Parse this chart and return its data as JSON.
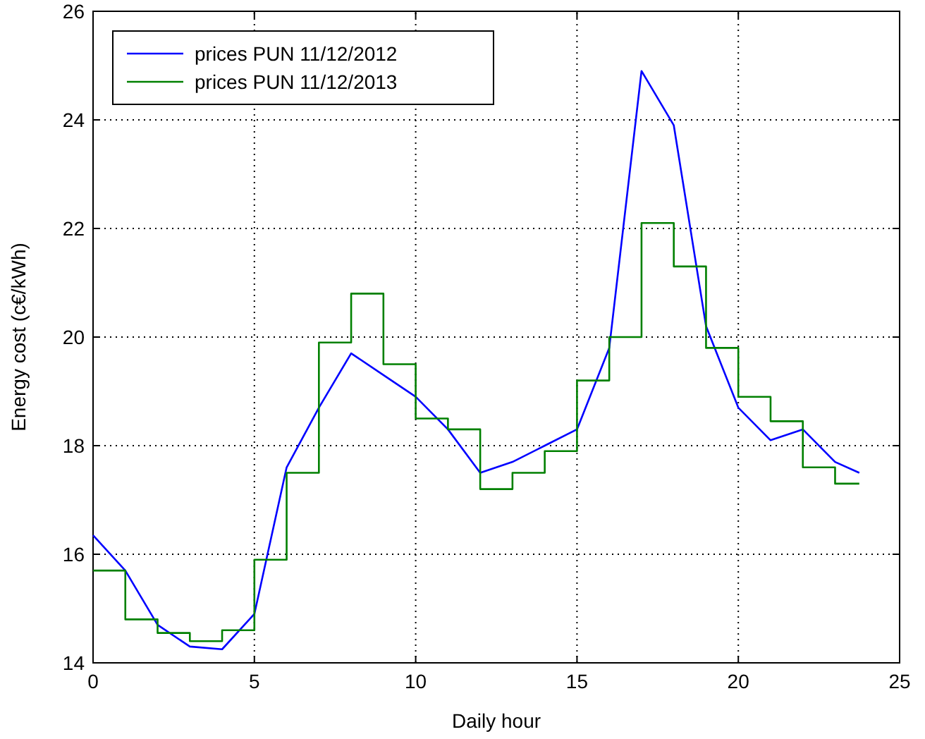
{
  "chart_data": {
    "type": "line",
    "xlabel": "Daily hour",
    "ylabel": "Energy cost (c€/kWh)",
    "xlim": [
      0,
      25
    ],
    "ylim": [
      14,
      26
    ],
    "xticks": [
      0,
      5,
      10,
      15,
      20,
      25
    ],
    "yticks": [
      14,
      16,
      18,
      20,
      22,
      24,
      26
    ],
    "grid": true,
    "legend": "top left",
    "series": [
      {
        "name": "prices PUN 11/12/2012",
        "color": "#0000ff",
        "x": [
          0,
          1,
          2,
          3,
          4,
          5,
          6,
          7,
          8,
          9,
          10,
          11,
          12,
          13,
          14,
          15,
          16,
          17,
          18,
          19,
          20,
          21,
          22,
          23,
          23.75
        ],
        "values": [
          16.35,
          15.7,
          14.7,
          14.3,
          14.25,
          14.9,
          17.6,
          18.7,
          19.7,
          19.3,
          18.9,
          18.3,
          17.5,
          17.7,
          18.0,
          18.3,
          19.8,
          24.9,
          23.9,
          20.2,
          18.7,
          18.1,
          18.3,
          17.7,
          17.5
        ]
      },
      {
        "name": "prices PUN 11/12/2013",
        "color": "#008000",
        "type": "step",
        "x": [
          0,
          1,
          2,
          3,
          4,
          5,
          6,
          7,
          8,
          9,
          10,
          11,
          12,
          13,
          14,
          15,
          16,
          17,
          18,
          19,
          20,
          21,
          22,
          23,
          23.75
        ],
        "values": [
          15.7,
          14.8,
          14.55,
          14.4,
          14.6,
          15.9,
          17.5,
          19.9,
          20.8,
          19.5,
          18.5,
          18.3,
          17.2,
          17.5,
          17.9,
          19.2,
          20.0,
          22.1,
          21.3,
          19.8,
          18.9,
          18.45,
          17.6,
          17.3,
          17.3
        ]
      }
    ]
  }
}
